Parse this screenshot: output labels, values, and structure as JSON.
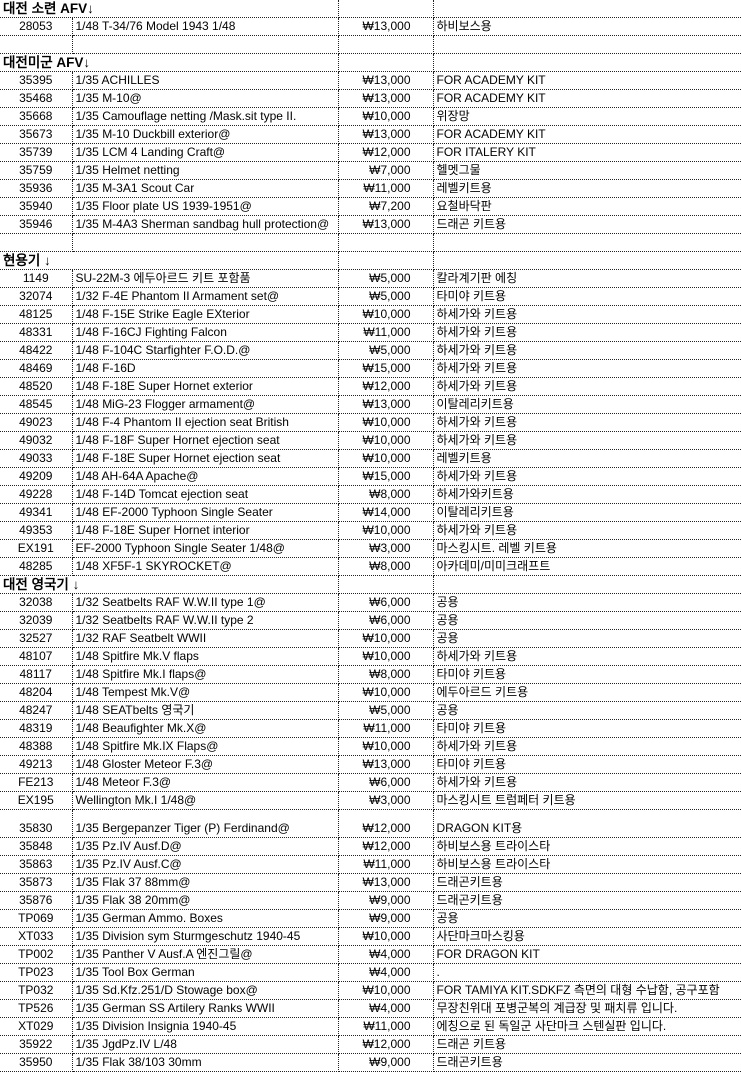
{
  "sheet": {
    "rows": [
      {
        "type": "section",
        "title": "대전 소련 AFV↓"
      },
      {
        "type": "item",
        "code": "28053",
        "name": "1/48 T-34/76 Model 1943  1/48",
        "price": "₩13,000",
        "note": "하비보스용"
      },
      {
        "type": "blank"
      },
      {
        "type": "section",
        "title": "대전미군 AFV↓"
      },
      {
        "type": "item",
        "code": "35395",
        "name": "1/35 ACHILLES",
        "price": "₩13,000",
        "note": "FOR ACADEMY KIT"
      },
      {
        "type": "item",
        "code": "35468",
        "name": "1/35 M-10@",
        "price": "₩13,000",
        "note": "FOR ACADEMY KIT"
      },
      {
        "type": "item",
        "code": "35668",
        "name": "1/35 Camouflage netting /Mask.sit type II.",
        "price": "₩10,000",
        "note": "위장망"
      },
      {
        "type": "item",
        "code": "35673",
        "name": "1/35 M-10 Duckbill exterior@",
        "price": "₩13,000",
        "note": "FOR ACADEMY KIT"
      },
      {
        "type": "item",
        "code": "35739",
        "name": "1/35 LCM 4 Landing Craft@",
        "price": "₩12,000",
        "note": "FOR ITALERY KIT"
      },
      {
        "type": "item",
        "code": "35759",
        "name": "1/35 Helmet netting",
        "price": "₩7,000",
        "note": "헬멧그물"
      },
      {
        "type": "item",
        "code": "35936",
        "name": "1/35 M-3A1 Scout Car",
        "price": "₩11,000",
        "note": "레벨키트용"
      },
      {
        "type": "item",
        "code": "35940",
        "name": "1/35 Floor plate US 1939-1951@",
        "price": "₩7,200",
        "note": "요철바닥판"
      },
      {
        "type": "item",
        "code": "35946",
        "name": "1/35 M-4A3 Sherman sandbag hull protection@",
        "price": "₩13,000",
        "note": "드래곤 키트용"
      },
      {
        "type": "blank"
      },
      {
        "type": "section",
        "title": "현용기 ↓"
      },
      {
        "type": "item",
        "code": "1149",
        "name": "SU-22M-3 에두아르드 키트 포함품",
        "price": "₩5,000",
        "note": "칼라계기판 에칭"
      },
      {
        "type": "item",
        "code": "32074",
        "name": "1/32 F-4E Phantom II Armament set@",
        "price": "₩5,000",
        "note": "타미야 키트용"
      },
      {
        "type": "item",
        "code": "48125",
        "name": "1/48 F-15E Strike Eagle EXterior",
        "price": "₩10,000",
        "note": "하세가와 키트용"
      },
      {
        "type": "item",
        "code": "48331",
        "name": "1/48 F-16CJ Fighting Falcon",
        "price": "₩11,000",
        "note": "하세가와 키트용"
      },
      {
        "type": "item",
        "code": "48422",
        "name": "1/48 F-104C Starfighter F.O.D.@",
        "price": "₩5,000",
        "note": "하세가와 키트용"
      },
      {
        "type": "item",
        "code": "48469",
        "name": "1/48 F-16D",
        "price": "₩15,000",
        "note": "하세가와 키트용"
      },
      {
        "type": "item",
        "code": "48520",
        "name": "1/48 F-18E Super Hornet exterior",
        "price": "₩12,000",
        "note": "하세가와 키트용"
      },
      {
        "type": "item",
        "code": "48545",
        "name": "1/48 MiG-23 Flogger armament@",
        "price": "₩13,000",
        "note": "이탈레리키트용"
      },
      {
        "type": "item",
        "code": "49023",
        "name": "1/48 F-4 Phantom II ejection seat British",
        "price": "₩10,000",
        "note": "하세가와 키트용"
      },
      {
        "type": "item",
        "code": "49032",
        "name": "1/48 F-18F Super Hornet ejection seat",
        "price": "₩10,000",
        "note": "하세가와 키트용"
      },
      {
        "type": "item",
        "code": "49033",
        "name": "1/48 F-18E Super Hornet ejection seat",
        "price": "₩10,000",
        "note": "레벨키트용"
      },
      {
        "type": "item",
        "code": "49209",
        "name": "1/48 AH-64A Apache@",
        "price": "₩15,000",
        "note": "하세가와 키트용"
      },
      {
        "type": "item",
        "code": "49228",
        "name": "1/48 F-14D Tomcat ejection seat",
        "price": "₩8,000",
        "note": "하세가와키트용"
      },
      {
        "type": "item",
        "code": "49341",
        "name": "1/48 EF-2000 Typhoon Single Seater",
        "price": "₩14,000",
        "note": "이탈레리키트용"
      },
      {
        "type": "item",
        "code": "49353",
        "name": "1/48 F-18E Super Hornet interior",
        "price": "₩10,000",
        "note": "하세가와 키트용"
      },
      {
        "type": "item",
        "code": "EX191",
        "name": "EF-2000 Typhoon Single Seater 1/48@",
        "price": "₩3,000",
        "note": "마스킹시트. 레벨 키트용"
      },
      {
        "type": "item",
        "code": "48285",
        "name": "1/48 XF5F-1 SKYROCKET@",
        "price": "₩8,000",
        "note": "아카데미/미미크래프트"
      },
      {
        "type": "section",
        "title": "대전 영국기 ↓"
      },
      {
        "type": "item",
        "code": "32038",
        "name": "1/32 Seatbelts RAF W.W.II type 1@",
        "price": "₩6,000",
        "note": "공용"
      },
      {
        "type": "item",
        "code": "32039",
        "name": "1/32 Seatbelts RAF W.W.II type 2",
        "price": "₩6,000",
        "note": "공용"
      },
      {
        "type": "item",
        "code": "32527",
        "name": "1/32 RAF Seatbelt WWII",
        "price": "₩10,000",
        "note": "공용"
      },
      {
        "type": "item",
        "code": "48107",
        "name": "1/48 Spitfire Mk.V flaps",
        "price": "₩10,000",
        "note": "하세가와 키트용"
      },
      {
        "type": "item",
        "code": "48117",
        "name": "1/48 Spitfire Mk.I flaps@",
        "price": "₩8,000",
        "note": "타미야 키트용"
      },
      {
        "type": "item",
        "code": "48204",
        "name": "1/48 Tempest Mk.V@",
        "price": "₩10,000",
        "note": "에두아르드 키트용"
      },
      {
        "type": "item",
        "code": "48247",
        "name": "1/48 SEATbelts 영국기",
        "price": "₩5,000",
        "note": "공용"
      },
      {
        "type": "item",
        "code": "48319",
        "name": "1/48 Beaufighter Mk.X@",
        "price": "₩11,000",
        "note": "타미야 키트용"
      },
      {
        "type": "item",
        "code": "48388",
        "name": "1/48 Spitfire Mk.IX Flaps@",
        "price": "₩10,000",
        "note": "하세가와 키트용"
      },
      {
        "type": "item",
        "code": "49213",
        "name": "1/48 Gloster Meteor F.3@",
        "price": "₩13,000",
        "note": "타미야 키트용"
      },
      {
        "type": "item",
        "code": "FE213",
        "name": "1/48 Meteor F.3@",
        "price": "₩6,000",
        "note": "하세가와 키트용"
      },
      {
        "type": "item",
        "code": "EX195",
        "name": "Wellington Mk.I 1/48@",
        "price": "₩3,000",
        "note": "마스킹시트 트럼페터 키트용"
      },
      {
        "type": "item",
        "tall": true,
        "code": "35830",
        "name": "1/35 Bergepanzer Tiger (P) Ferdinand@",
        "price": "₩12,000",
        "note": "DRAGON KIT용"
      },
      {
        "type": "item",
        "code": "35848",
        "name": "1/35 Pz.IV Ausf.D@",
        "price": "₩12,000",
        "note": "하비보스용   트라이스타"
      },
      {
        "type": "item",
        "code": "35863",
        "name": "1/35 Pz.IV Ausf.C@",
        "price": "₩11,000",
        "note": "하비보스용   트라이스타"
      },
      {
        "type": "item",
        "code": "35873",
        "name": "1/35 Flak 37 88mm@",
        "price": "₩13,000",
        "note": "드래곤키트용"
      },
      {
        "type": "item",
        "code": "35876",
        "name": "1/35 Flak 38 20mm@",
        "price": "₩9,000",
        "note": "드래곤키트용"
      },
      {
        "type": "item",
        "code": "TP069",
        "name": "1/35 German Ammo. Boxes",
        "price": "₩9,000",
        "note": "공용"
      },
      {
        "type": "item",
        "code": "XT033",
        "name": "1/35 Division sym Sturmgeschutz 1940-45",
        "price": "₩10,000",
        "note": "사단마크마스킹용"
      },
      {
        "type": "item",
        "code": "TP002",
        "name": "1/35 Panther V Ausf.A 엔진그릴@",
        "price": "₩4,000",
        "note": "FOR DRAGON KIT"
      },
      {
        "type": "item",
        "code": "TP023",
        "name": "1/35 Tool Box German",
        "price": "₩4,000",
        "note": "."
      },
      {
        "type": "item",
        "code": "TP032",
        "name": "1/35 Sd.Kfz.251/D Stowage box@",
        "price": "₩10,000",
        "note": "FOR TAMIYA KIT.SDKFZ 측면의 대형 수납함, 공구포함"
      },
      {
        "type": "item",
        "code": "TP526",
        "name": "1/35 German SS Artilery Ranks WWII",
        "price": "₩4,000",
        "note": "무장친위대 포병군복의 계급장 및 패치류 입니다."
      },
      {
        "type": "item",
        "code": "XT029",
        "name": "1/35 Division Insignia 1940-45",
        "price": "₩11,000",
        "note": "에칭으로 된 독일군 사단마크 스텐실판 입니다."
      },
      {
        "type": "item",
        "code": "35922",
        "name": "1/35 JgdPz.IV L/48",
        "price": "₩12,000",
        "note": "드래곤 키트용"
      },
      {
        "type": "item",
        "code": "35950",
        "name": "1/35 Flak 38/103 30mm",
        "price": "₩9,000",
        "note": "드래곤키트용"
      }
    ]
  }
}
